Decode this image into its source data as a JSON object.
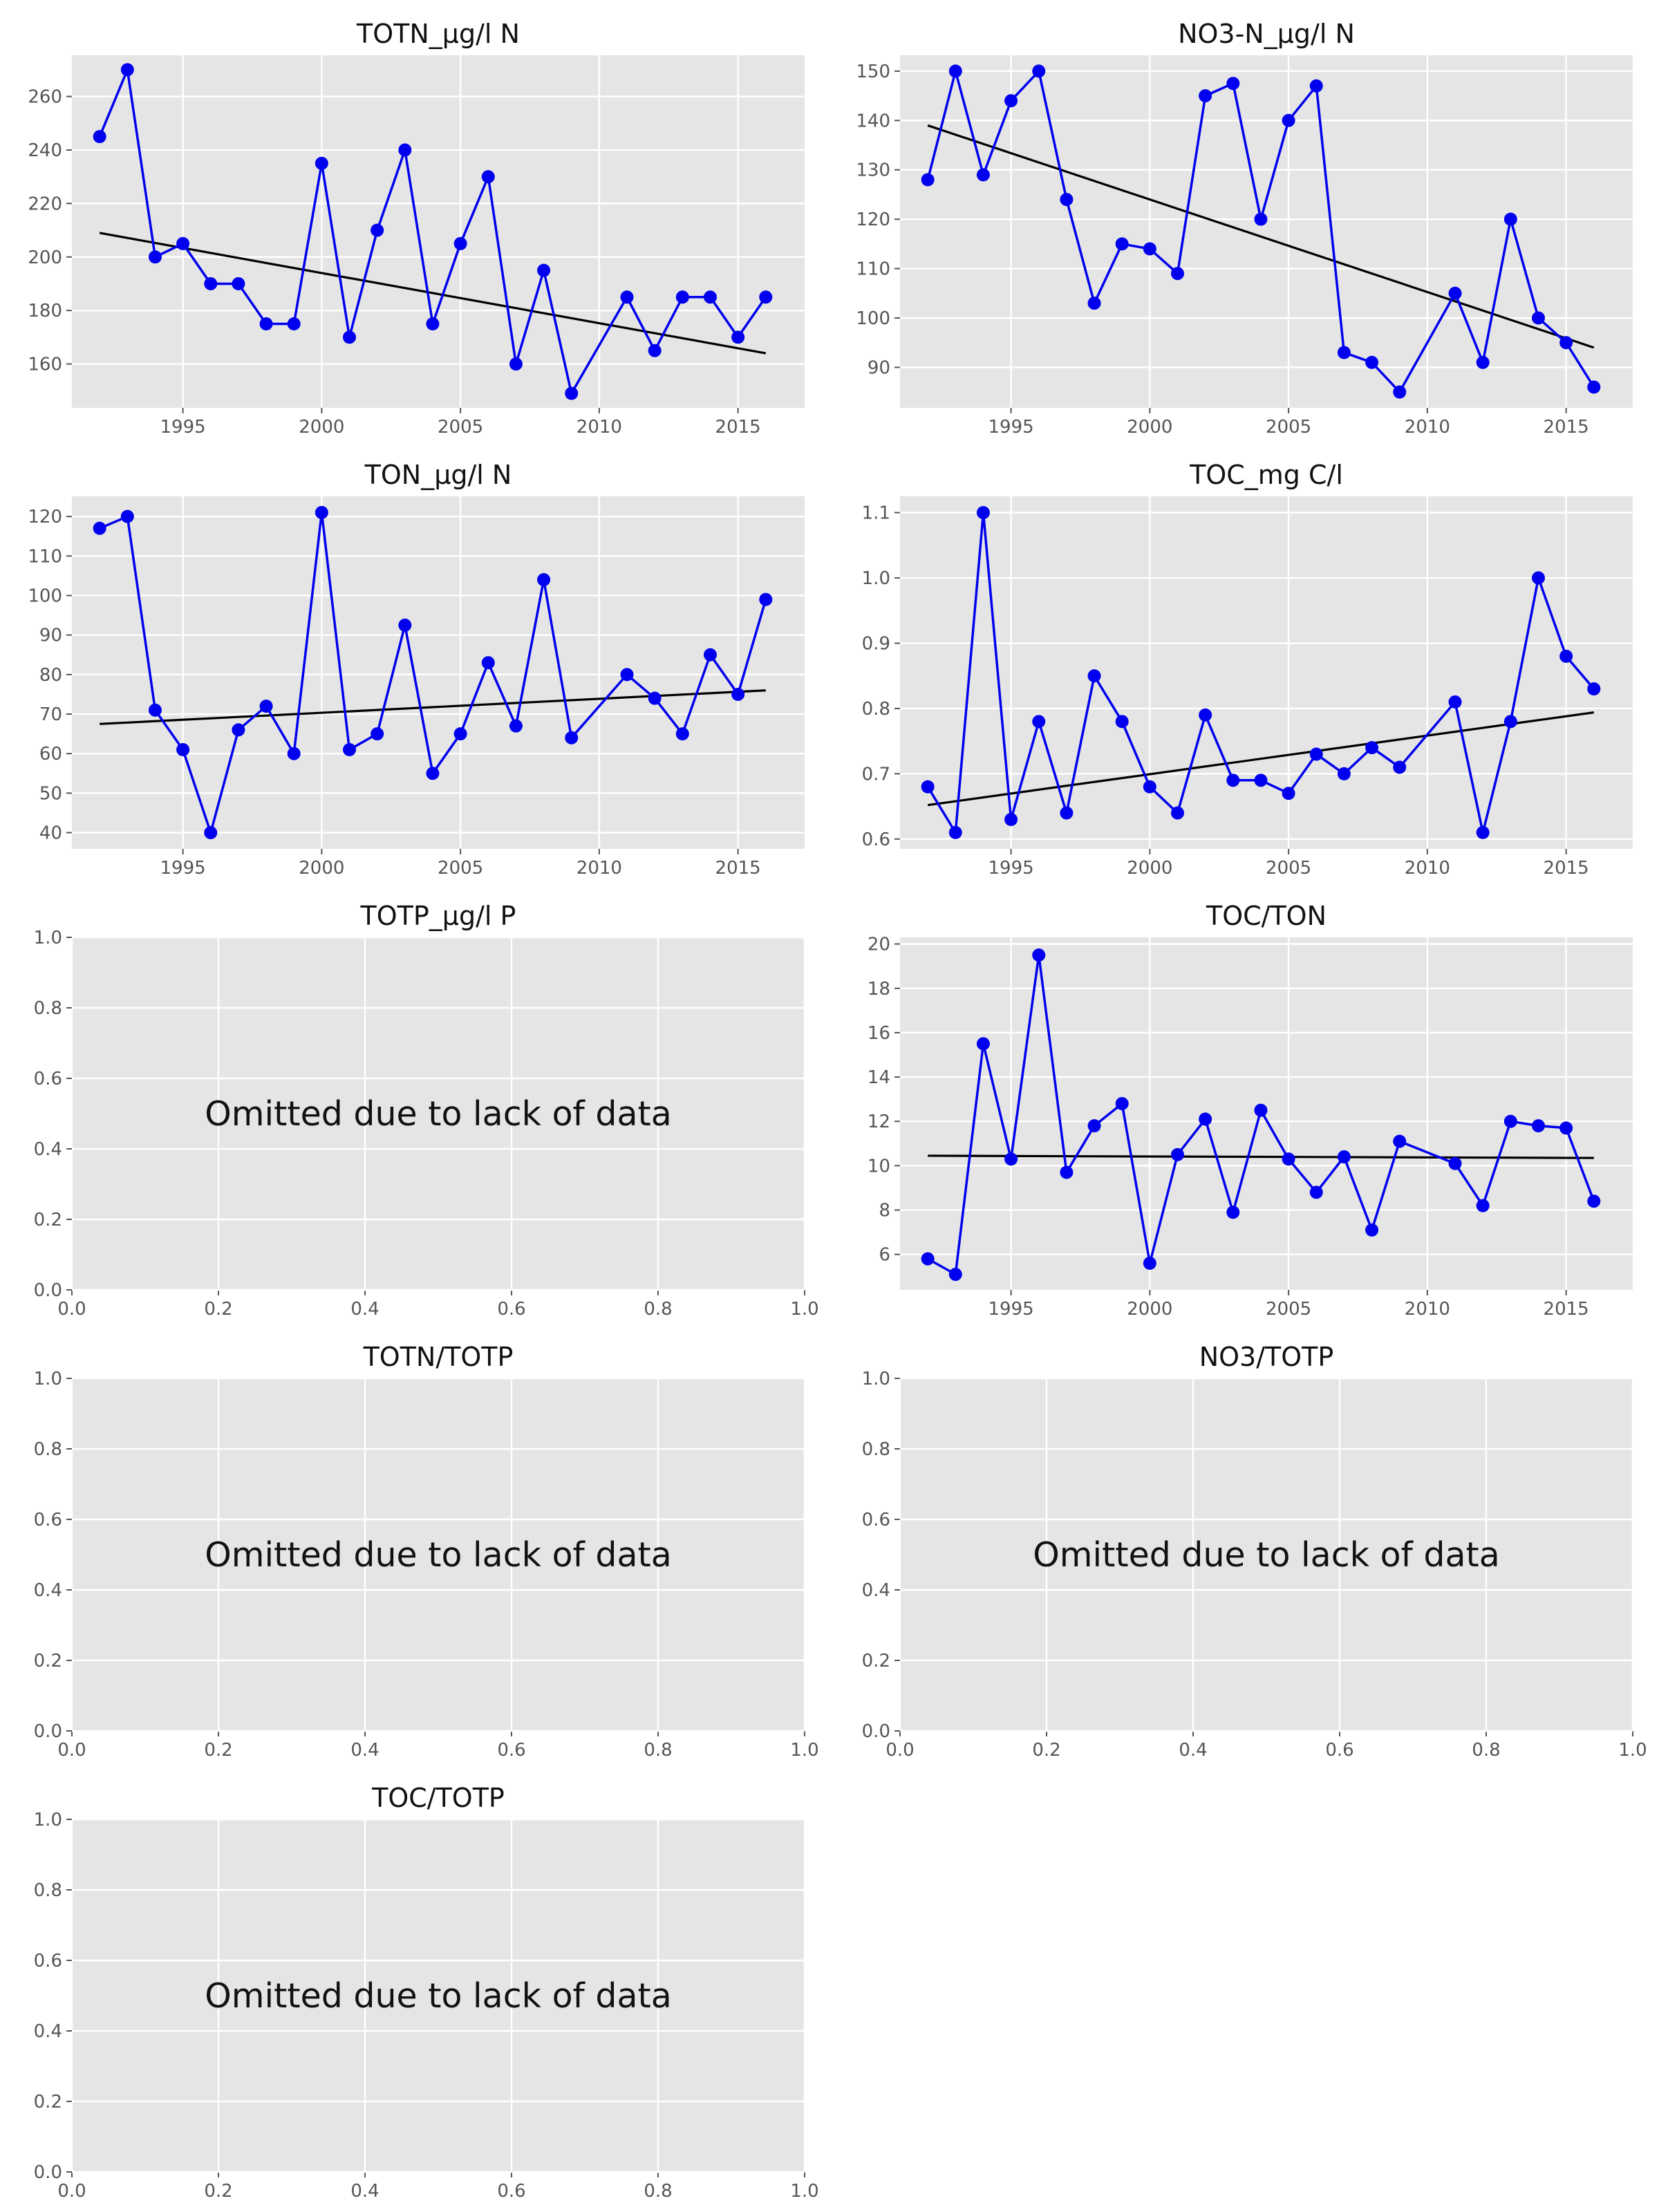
{
  "chart_data": [
    {
      "type": "line",
      "title": "TOTN_µg/l N",
      "omitted": false,
      "x": [
        1992,
        1993,
        1994,
        1995,
        1996,
        1997,
        1998,
        1999,
        2000,
        2001,
        2002,
        2003,
        2004,
        2005,
        2006,
        2007,
        2008,
        2009,
        2011,
        2012,
        2013,
        2014,
        2015,
        2016
      ],
      "values": [
        245,
        270,
        200,
        205,
        190,
        190,
        175,
        175,
        235,
        170,
        210,
        240,
        175,
        205,
        230,
        160,
        195,
        149,
        185,
        165,
        185,
        185,
        170,
        185
      ],
      "trend": [
        [
          1992,
          209
        ],
        [
          2016,
          164
        ]
      ],
      "xlim": [
        1991.0,
        2017.4
      ],
      "ylim": [
        143.6,
        275.4
      ],
      "xticks": [
        1995,
        2000,
        2005,
        2010,
        2015
      ],
      "xtick_labels": [
        "1995",
        "2000",
        "2005",
        "2010",
        "2015"
      ],
      "yticks": [
        160,
        180,
        200,
        220,
        240,
        260
      ],
      "ytick_labels": [
        "160",
        "180",
        "200",
        "220",
        "240",
        "260"
      ],
      "grid": true,
      "line_color": "#0000ee",
      "trend_color": "#000000"
    },
    {
      "type": "line",
      "title": "NO3-N_µg/l N",
      "omitted": false,
      "x": [
        1992,
        1993,
        1994,
        1995,
        1996,
        1997,
        1998,
        1999,
        2000,
        2001,
        2002,
        2003,
        2004,
        2005,
        2006,
        2007,
        2008,
        2009,
        2011,
        2012,
        2013,
        2014,
        2015,
        2016
      ],
      "values": [
        128,
        150,
        129,
        144,
        150,
        124,
        103,
        115,
        114,
        109,
        145,
        147.5,
        120,
        140,
        147,
        93,
        91,
        85,
        105,
        91,
        120,
        100,
        95,
        86
      ],
      "trend": [
        [
          1992,
          139
        ],
        [
          2016,
          94
        ]
      ],
      "xlim": [
        1991.0,
        2017.4
      ],
      "ylim": [
        81.8,
        153.2
      ],
      "xticks": [
        1995,
        2000,
        2005,
        2010,
        2015
      ],
      "xtick_labels": [
        "1995",
        "2000",
        "2005",
        "2010",
        "2015"
      ],
      "yticks": [
        90,
        100,
        110,
        120,
        130,
        140,
        150
      ],
      "ytick_labels": [
        "90",
        "100",
        "110",
        "120",
        "130",
        "140",
        "150"
      ],
      "grid": true,
      "line_color": "#0000ee",
      "trend_color": "#000000"
    },
    {
      "type": "line",
      "title": "TON_µg/l N",
      "omitted": false,
      "x": [
        1992,
        1993,
        1994,
        1995,
        1996,
        1997,
        1998,
        1999,
        2000,
        2001,
        2002,
        2003,
        2004,
        2005,
        2006,
        2007,
        2008,
        2009,
        2011,
        2012,
        2013,
        2014,
        2015,
        2016
      ],
      "values": [
        117,
        120,
        71,
        61,
        40,
        66,
        72,
        60,
        121,
        61,
        65,
        92.5,
        55,
        65,
        83,
        67,
        104,
        64,
        80,
        74,
        65,
        85,
        75,
        99
      ],
      "trend": [
        [
          1992,
          67.5
        ],
        [
          2016,
          76
        ]
      ],
      "xlim": [
        1991.0,
        2017.4
      ],
      "ylim": [
        35.9,
        125.1
      ],
      "xticks": [
        1995,
        2000,
        2005,
        2010,
        2015
      ],
      "xtick_labels": [
        "1995",
        "2000",
        "2005",
        "2010",
        "2015"
      ],
      "yticks": [
        40,
        50,
        60,
        70,
        80,
        90,
        100,
        110,
        120
      ],
      "ytick_labels": [
        "40",
        "50",
        "60",
        "70",
        "80",
        "90",
        "100",
        "110",
        "120"
      ],
      "grid": true,
      "line_color": "#0000ee",
      "trend_color": "#000000"
    },
    {
      "type": "line",
      "title": "TOC_mg C/l",
      "omitted": false,
      "x": [
        1992,
        1993,
        1994,
        1995,
        1996,
        1997,
        1998,
        1999,
        2000,
        2001,
        2002,
        2003,
        2004,
        2005,
        2006,
        2007,
        2008,
        2009,
        2011,
        2012,
        2013,
        2014,
        2015,
        2016
      ],
      "values": [
        0.68,
        0.61,
        1.1,
        0.63,
        0.78,
        0.64,
        0.85,
        0.78,
        0.68,
        0.64,
        0.79,
        0.69,
        0.69,
        0.67,
        0.73,
        0.7,
        0.74,
        0.71,
        0.81,
        0.61,
        0.78,
        1.0,
        0.88,
        0.83
      ],
      "trend": [
        [
          1992,
          0.652
        ],
        [
          2016,
          0.794
        ]
      ],
      "xlim": [
        1991.0,
        2017.4
      ],
      "ylim": [
        0.585,
        1.125
      ],
      "xticks": [
        1995,
        2000,
        2005,
        2010,
        2015
      ],
      "xtick_labels": [
        "1995",
        "2000",
        "2005",
        "2010",
        "2015"
      ],
      "yticks": [
        0.6,
        0.7,
        0.8,
        0.9,
        1.0,
        1.1
      ],
      "ytick_labels": [
        "0.6",
        "0.7",
        "0.8",
        "0.9",
        "1.0",
        "1.1"
      ],
      "grid": true,
      "line_color": "#0000ee",
      "trend_color": "#000000"
    },
    {
      "type": "line",
      "title": "TOTP_µg/l P",
      "omitted": true,
      "message": "Omitted due to lack of data",
      "xlim": [
        0,
        1
      ],
      "ylim": [
        0,
        1
      ],
      "xticks": [
        0,
        0.2,
        0.4,
        0.6,
        0.8,
        1.0
      ],
      "xtick_labels": [
        "0.0",
        "0.2",
        "0.4",
        "0.6",
        "0.8",
        "1.0"
      ],
      "yticks": [
        0,
        0.2,
        0.4,
        0.6,
        0.8,
        1.0
      ],
      "ytick_labels": [
        "0.0",
        "0.2",
        "0.4",
        "0.6",
        "0.8",
        "1.0"
      ],
      "grid": true
    },
    {
      "type": "line",
      "title": "TOC/TON",
      "omitted": false,
      "x": [
        1992,
        1993,
        1994,
        1995,
        1996,
        1997,
        1998,
        1999,
        2000,
        2001,
        2002,
        2003,
        2004,
        2005,
        2006,
        2007,
        2008,
        2009,
        2011,
        2012,
        2013,
        2014,
        2015,
        2016
      ],
      "values": [
        5.8,
        5.1,
        15.5,
        10.3,
        19.5,
        9.7,
        11.8,
        12.8,
        5.6,
        10.5,
        12.1,
        7.9,
        12.5,
        10.3,
        8.8,
        10.4,
        7.1,
        11.1,
        10.1,
        8.2,
        12.0,
        11.8,
        11.7,
        8.4
      ],
      "trend": [
        [
          1992,
          10.45
        ],
        [
          2016,
          10.35
        ]
      ],
      "xlim": [
        1991.0,
        2017.4
      ],
      "ylim": [
        4.4,
        20.3
      ],
      "xticks": [
        1995,
        2000,
        2005,
        2010,
        2015
      ],
      "xtick_labels": [
        "1995",
        "2000",
        "2005",
        "2010",
        "2015"
      ],
      "yticks": [
        6,
        8,
        10,
        12,
        14,
        16,
        18,
        20
      ],
      "ytick_labels": [
        "6",
        "8",
        "10",
        "12",
        "14",
        "16",
        "18",
        "20"
      ],
      "grid": true,
      "line_color": "#0000ee",
      "trend_color": "#000000"
    },
    {
      "type": "line",
      "title": "TOTN/TOTP",
      "omitted": true,
      "message": "Omitted due to lack of data",
      "xlim": [
        0,
        1
      ],
      "ylim": [
        0,
        1
      ],
      "xticks": [
        0,
        0.2,
        0.4,
        0.6,
        0.8,
        1.0
      ],
      "xtick_labels": [
        "0.0",
        "0.2",
        "0.4",
        "0.6",
        "0.8",
        "1.0"
      ],
      "yticks": [
        0,
        0.2,
        0.4,
        0.6,
        0.8,
        1.0
      ],
      "ytick_labels": [
        "0.0",
        "0.2",
        "0.4",
        "0.6",
        "0.8",
        "1.0"
      ],
      "grid": true
    },
    {
      "type": "line",
      "title": "NO3/TOTP",
      "omitted": true,
      "message": "Omitted due to lack of data",
      "xlim": [
        0,
        1
      ],
      "ylim": [
        0,
        1
      ],
      "xticks": [
        0,
        0.2,
        0.4,
        0.6,
        0.8,
        1.0
      ],
      "xtick_labels": [
        "0.0",
        "0.2",
        "0.4",
        "0.6",
        "0.8",
        "1.0"
      ],
      "yticks": [
        0,
        0.2,
        0.4,
        0.6,
        0.8,
        1.0
      ],
      "ytick_labels": [
        "0.0",
        "0.2",
        "0.4",
        "0.6",
        "0.8",
        "1.0"
      ],
      "grid": true
    },
    {
      "type": "line",
      "title": "TOC/TOTP",
      "omitted": true,
      "message": "Omitted due to lack of data",
      "xlim": [
        0,
        1
      ],
      "ylim": [
        0,
        1
      ],
      "xticks": [
        0,
        0.2,
        0.4,
        0.6,
        0.8,
        1.0
      ],
      "xtick_labels": [
        "0.0",
        "0.2",
        "0.4",
        "0.6",
        "0.8",
        "1.0"
      ],
      "yticks": [
        0,
        0.2,
        0.4,
        0.6,
        0.8,
        1.0
      ],
      "ytick_labels": [
        "0.0",
        "0.2",
        "0.4",
        "0.6",
        "0.8",
        "1.0"
      ],
      "grid": true
    }
  ]
}
